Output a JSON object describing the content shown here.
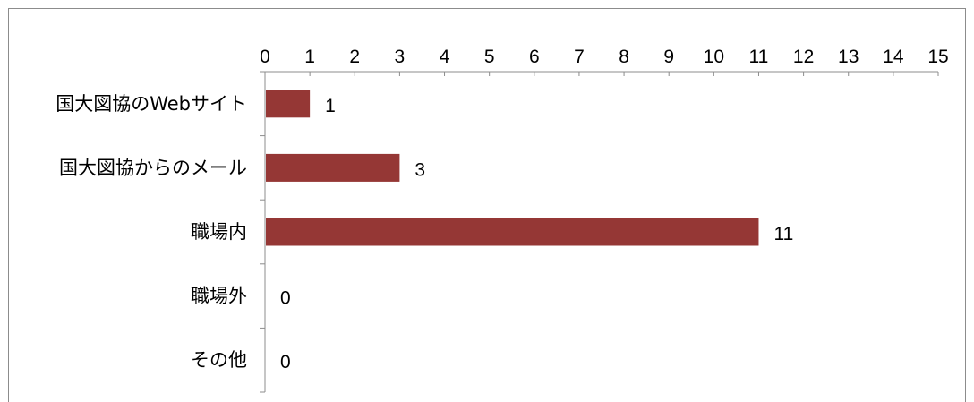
{
  "chart_data": {
    "type": "bar",
    "orientation": "horizontal",
    "categories": [
      "国大図協のWebサイト",
      "国大図協からのメール",
      "職場内",
      "職場外",
      "その他"
    ],
    "values": [
      1,
      3,
      11,
      0,
      0
    ],
    "data_labels": [
      "1",
      "3",
      "11",
      "0",
      "0"
    ],
    "xlim": [
      0,
      15
    ],
    "x_ticks": [
      0,
      1,
      2,
      3,
      4,
      5,
      6,
      7,
      8,
      9,
      10,
      11,
      12,
      13,
      14,
      15
    ],
    "x_tick_labels": [
      "0",
      "1",
      "2",
      "3",
      "4",
      "5",
      "6",
      "7",
      "8",
      "9",
      "10",
      "11",
      "12",
      "13",
      "14",
      "15"
    ],
    "axis_position": "top",
    "grid": false,
    "bar_color": "#953735",
    "axis_color": "#8c8c8c"
  }
}
